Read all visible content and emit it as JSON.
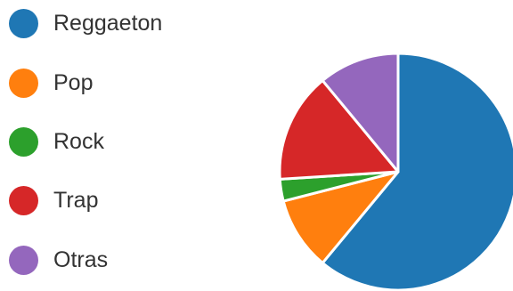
{
  "chart_data": {
    "type": "pie",
    "title": "",
    "legend_position": "left",
    "slices": [
      {
        "label": "Reggaeton",
        "value": 61,
        "color": "#1F77B4"
      },
      {
        "label": "Pop",
        "value": 10,
        "color": "#FF7F0E"
      },
      {
        "label": "Rock",
        "value": 3,
        "color": "#2CA02C"
      },
      {
        "label": "Trap",
        "value": 15,
        "color": "#D62728"
      },
      {
        "label": "Otras",
        "value": 11,
        "color": "#9467BD"
      }
    ]
  }
}
